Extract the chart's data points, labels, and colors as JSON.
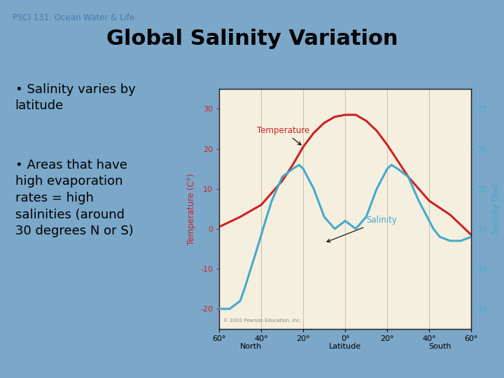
{
  "background_color": "#7BA7C9",
  "slide_title": "Global Salinity Variation",
  "slide_subtitle": "PSCI 131: Ocean Water & Life",
  "bullet1": "Salinity varies by\nlatitude",
  "bullet2": "Areas that have\nhigh evaporation\nrates = high\nsalinities (around\n30 degrees N or S)",
  "chart": {
    "bg_color": "#F5EFE0",
    "border_color": "#222222",
    "latitude_labels": [
      "60°",
      "40°",
      "20°",
      "0°",
      "20°",
      "40°",
      "60°"
    ],
    "lat_ticks": [
      -60,
      -40,
      -20,
      0,
      20,
      40,
      60
    ],
    "north_label": "North",
    "south_label": "South",
    "lat_axis_label": "Latitude",
    "temp_ylabel": "Temperature (C°)",
    "sal_ylabel": "Salinity (‰)",
    "temp_color": "#CC2222",
    "sal_color": "#44AACC",
    "temp_ylim": [
      -25,
      35
    ],
    "sal_ylim": [
      31.5,
      37.5
    ],
    "temp_yticks": [
      -20,
      -10,
      0,
      10,
      20,
      30
    ],
    "sal_yticks": [
      32,
      33,
      34,
      35,
      36,
      37
    ],
    "temp_label": "Temperature",
    "sal_label": "Salinity",
    "grid_color": "#CCBBAA",
    "temp_data_x": [
      -60,
      -50,
      -40,
      -35,
      -30,
      -25,
      -20,
      -15,
      -10,
      -5,
      0,
      5,
      10,
      15,
      20,
      25,
      30,
      35,
      40,
      50,
      60
    ],
    "temp_data_y": [
      0.5,
      3.0,
      6.0,
      9.0,
      12.0,
      16.0,
      20.5,
      24.0,
      26.5,
      28.0,
      28.5,
      28.5,
      27.0,
      24.5,
      21.0,
      17.0,
      13.0,
      10.0,
      7.0,
      3.5,
      -1.5
    ],
    "sal_data_x": [
      -60,
      -55,
      -50,
      -48,
      -45,
      -42,
      -38,
      -35,
      -30,
      -25,
      -22,
      -20,
      -15,
      -10,
      -5,
      0,
      5,
      10,
      15,
      20,
      22,
      25,
      30,
      35,
      38,
      42,
      45,
      50,
      55,
      60
    ],
    "sal_data_y": [
      32.0,
      32.0,
      32.2,
      32.5,
      33.0,
      33.5,
      34.2,
      34.7,
      35.3,
      35.5,
      35.6,
      35.5,
      35.0,
      34.3,
      34.0,
      34.2,
      34.0,
      34.3,
      35.0,
      35.5,
      35.6,
      35.5,
      35.3,
      34.7,
      34.4,
      34.0,
      33.8,
      33.7,
      33.7,
      33.8
    ],
    "copyright": "© 2002 Pearson Education, Inc."
  }
}
